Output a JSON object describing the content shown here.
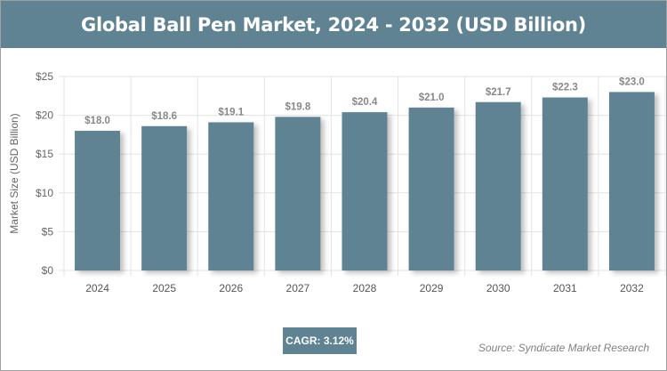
{
  "header": {
    "title": "Global Ball Pen Market, 2024 - 2032 (USD Billion)"
  },
  "chart_data": {
    "type": "bar",
    "title": "Global Ball Pen Market, 2024 - 2032 (USD Billion)",
    "xlabel": "",
    "ylabel": "Market Size (USD Billion)",
    "categories": [
      "2024",
      "2025",
      "2026",
      "2027",
      "2028",
      "2029",
      "2030",
      "2031",
      "2032"
    ],
    "values": [
      18.0,
      18.6,
      19.1,
      19.8,
      20.4,
      21.0,
      21.7,
      22.3,
      23.0
    ],
    "data_labels": [
      "$18.0",
      "$18.6",
      "$19.1",
      "$19.8",
      "$20.4",
      "$21.0",
      "$21.7",
      "$22.3",
      "$23.0"
    ],
    "ylim": [
      0,
      25
    ],
    "yticks": [
      0,
      5,
      10,
      15,
      20,
      25
    ],
    "ytick_labels": [
      "$0",
      "$5",
      "$10",
      "$15",
      "$20",
      "$25"
    ],
    "grid": true,
    "bar_color": "#5f8393"
  },
  "footer": {
    "cagr": "CAGR: 3.12%",
    "source": "Source: Syndicate Market Research"
  }
}
